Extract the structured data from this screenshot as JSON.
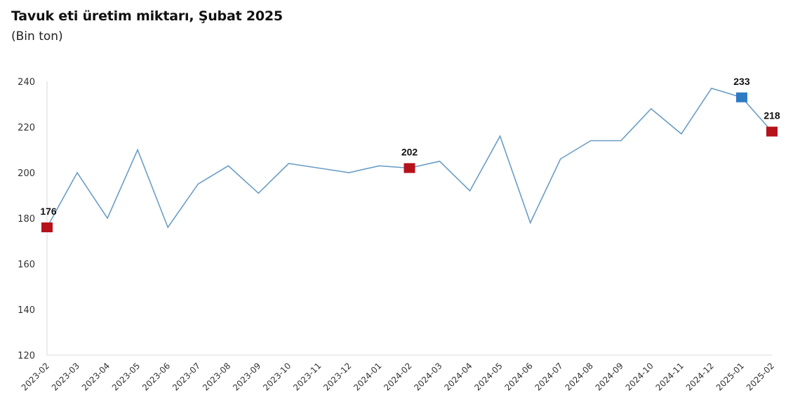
{
  "header": {
    "title": "Tavuk eti üretim miktarı, Şubat 2025",
    "subtitle": "(Bin ton)"
  },
  "colors": {
    "line": "#6b9dc6",
    "highlight_red": "#b5121b",
    "highlight_blue": "#2e7bc4",
    "axis": "#d9d9d9"
  },
  "chart_data": {
    "type": "line",
    "title": "Tavuk eti üretim miktarı, Şubat 2025",
    "subtitle": "(Bin ton)",
    "xlabel": "",
    "ylabel": "Bin ton",
    "ylim": [
      120,
      240
    ],
    "yticks": [
      120,
      140,
      160,
      180,
      200,
      220,
      240
    ],
    "grid": false,
    "legend": null,
    "categories": [
      "2023-02",
      "2023-03",
      "2023-04",
      "2023-05",
      "2023-06",
      "2023-07",
      "2023-08",
      "2023-09",
      "2023-10",
      "2023-11",
      "2023-12",
      "2024-01",
      "2024-02",
      "2024-03",
      "2024-04",
      "2024-05",
      "2024-06",
      "2024-07",
      "2024-08",
      "2024-09",
      "2024-10",
      "2024-11",
      "2024-12",
      "2025-01",
      "2025-02"
    ],
    "series": [
      {
        "name": "Tavuk eti üretim miktarı",
        "values": [
          176,
          200,
          180,
          210,
          176,
          195,
          203,
          191,
          204,
          202,
          200,
          203,
          202,
          205,
          192,
          216,
          178,
          206,
          214,
          214,
          228,
          217,
          237,
          233,
          218
        ]
      }
    ],
    "annotations": [
      {
        "category": "2023-02",
        "label": "176",
        "marker_color": "red"
      },
      {
        "category": "2024-02",
        "label": "202",
        "marker_color": "red"
      },
      {
        "category": "2025-01",
        "label": "233",
        "marker_color": "blue"
      },
      {
        "category": "2025-02",
        "label": "218",
        "marker_color": "red"
      }
    ]
  }
}
